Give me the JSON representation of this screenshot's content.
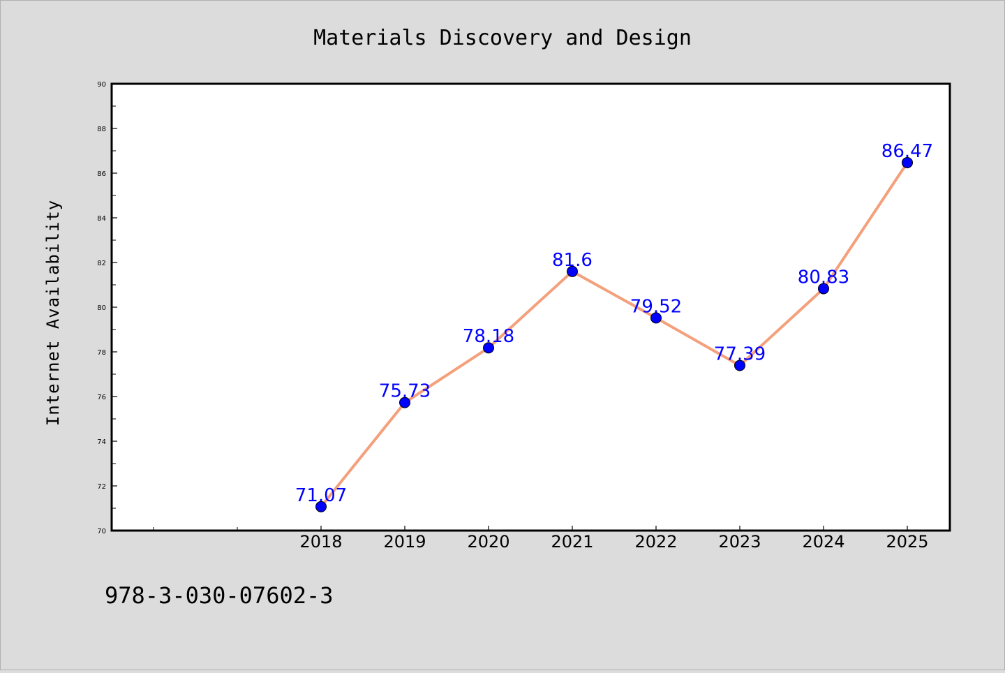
{
  "chart_data": {
    "type": "line",
    "title": "Materials Discovery and Design",
    "xlabel": "",
    "ylabel": "Internet Availability",
    "categories": [
      "2018",
      "2019",
      "2020",
      "2021",
      "2022",
      "2023",
      "2024",
      "2025"
    ],
    "series": [
      {
        "values": [
          71.07,
          75.73,
          78.18,
          81.6,
          79.52,
          77.39,
          80.83,
          86.47
        ]
      }
    ],
    "data_labels": [
      "71.07",
      "75.73",
      "78.18",
      "81.6",
      "79.52",
      "77.39",
      "80.83",
      "86.47"
    ],
    "ylim": [
      70,
      90
    ],
    "yticks": [
      "70",
      "72",
      "74",
      "76",
      "78",
      "80",
      "82",
      "84",
      "86",
      "88",
      "90"
    ],
    "grid": false,
    "legend": "none",
    "colors": {
      "line": "#f4a07c",
      "marker": "#0000ff",
      "label": "#0000ff"
    }
  },
  "footnote": "978-3-030-07602-3"
}
